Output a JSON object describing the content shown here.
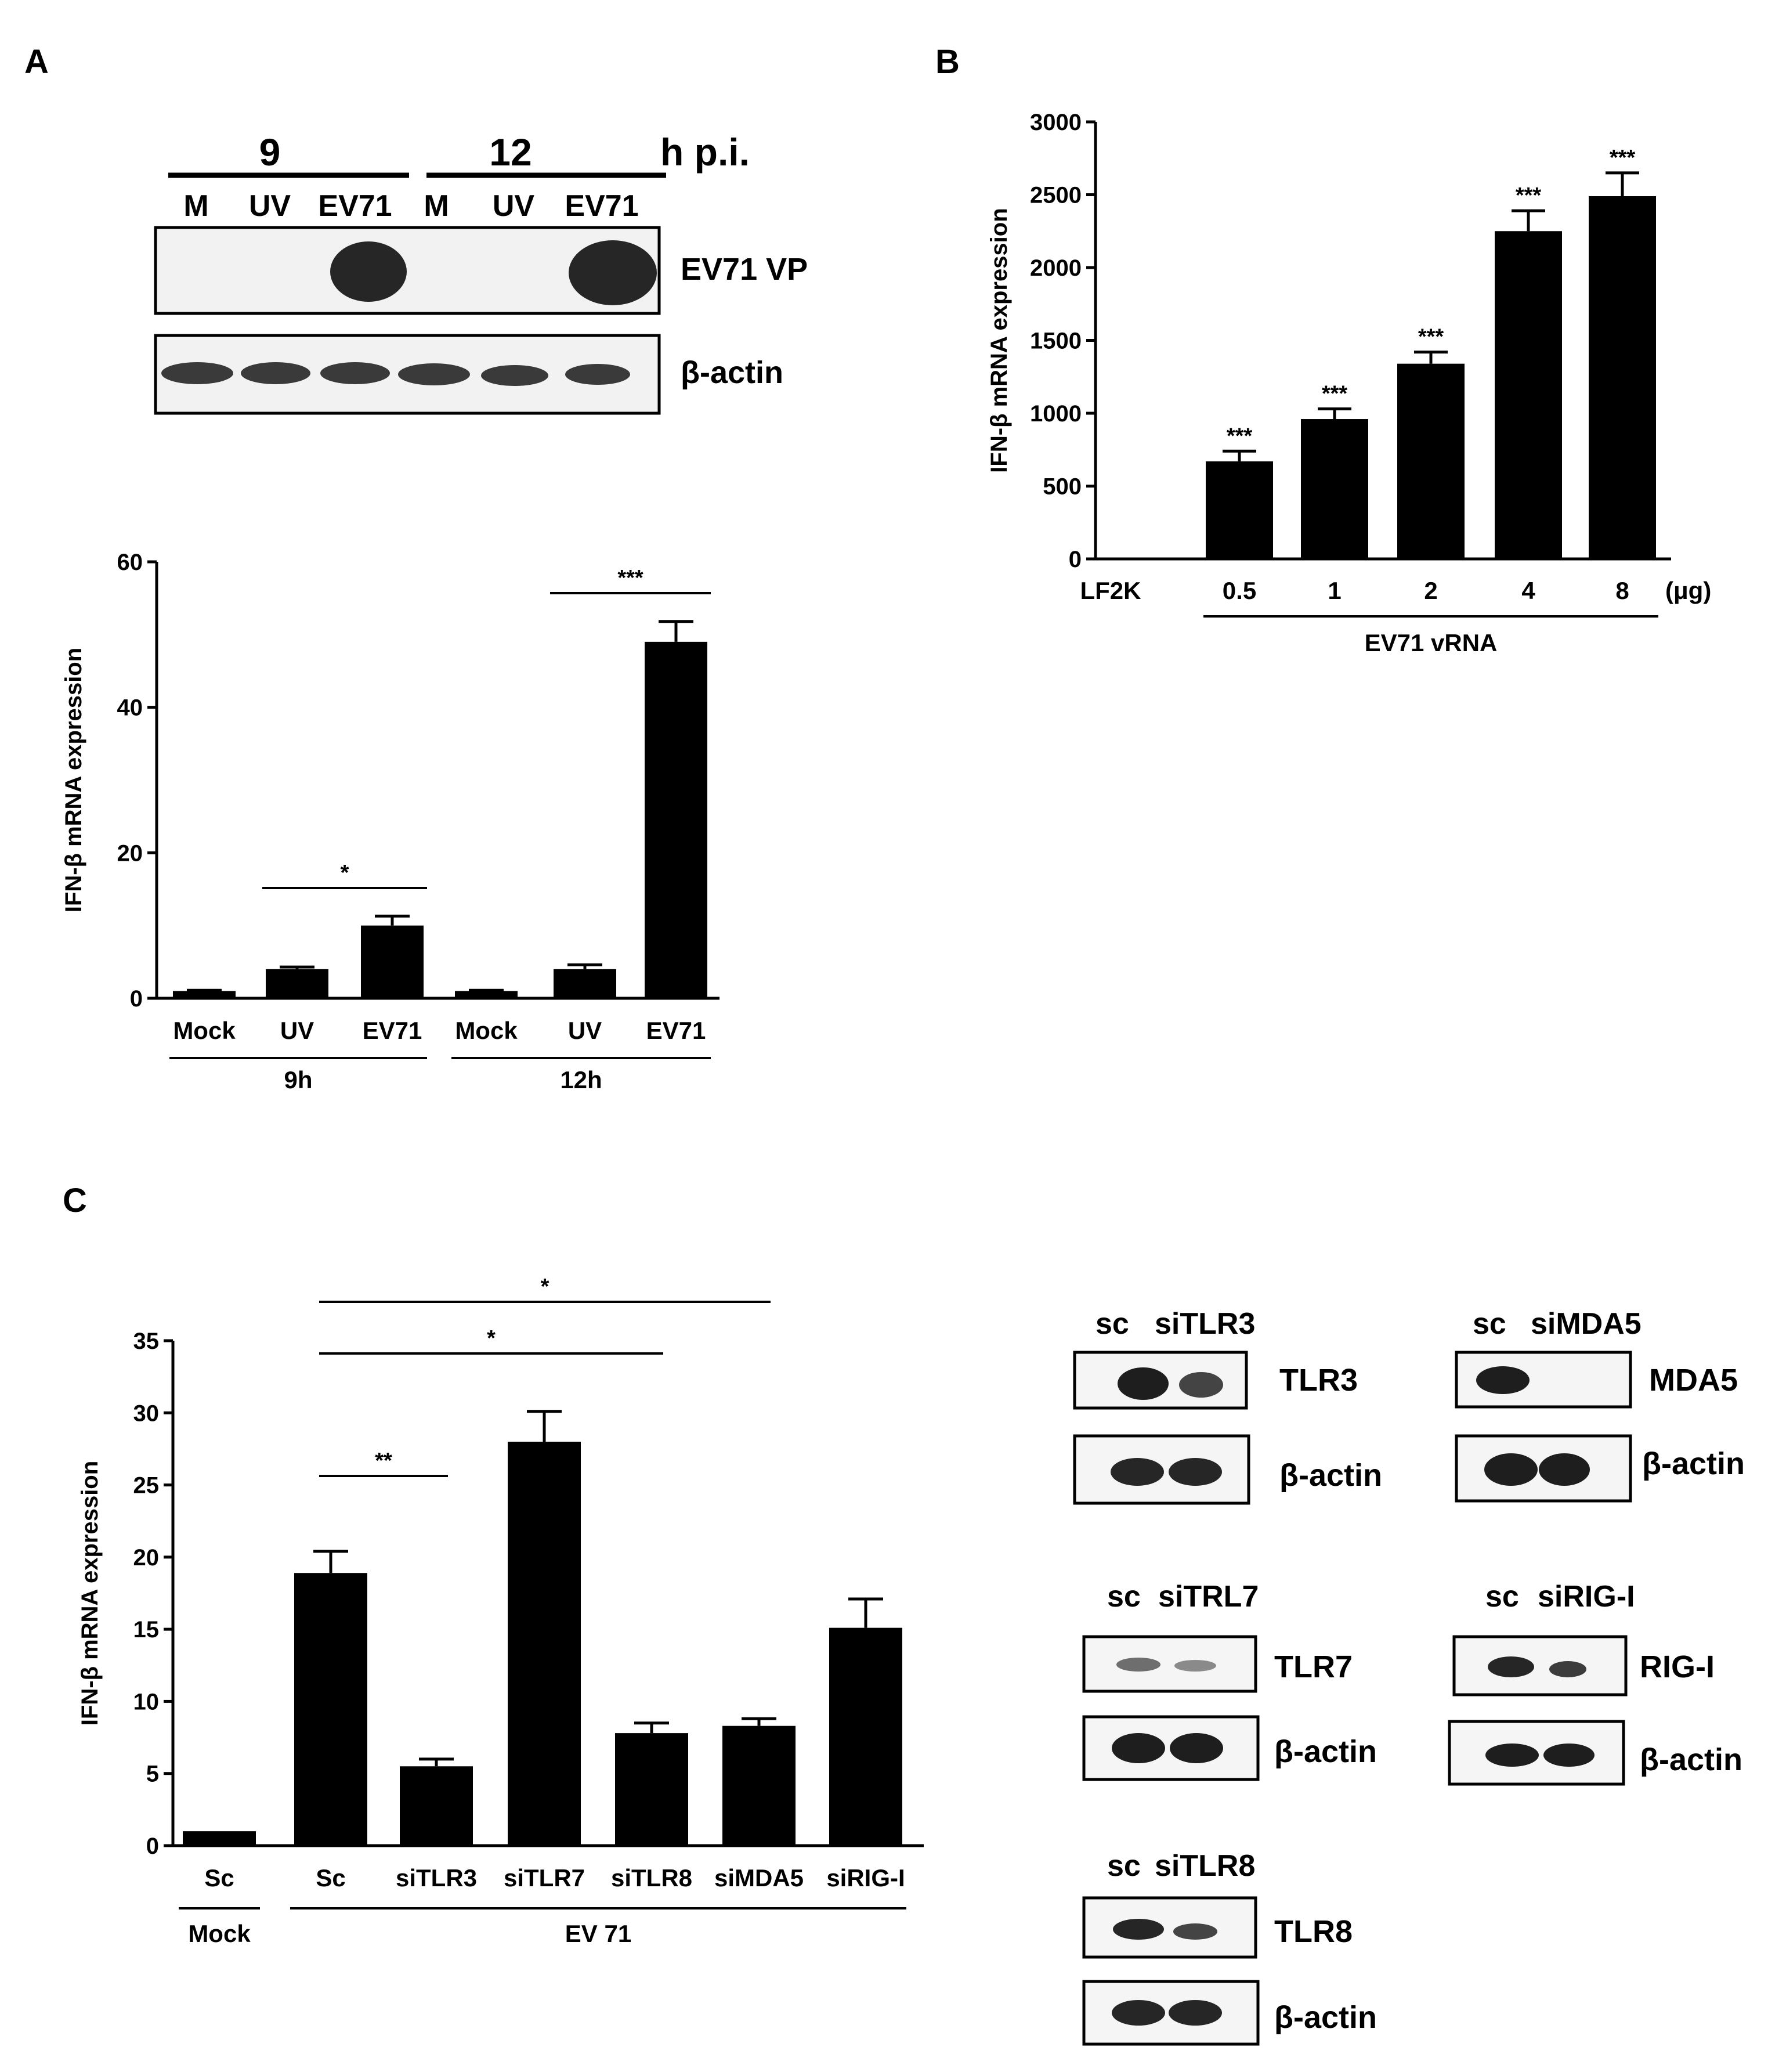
{
  "panels": {
    "A": {
      "letter": "A",
      "blot": {
        "timepoints": [
          "9",
          "12"
        ],
        "time_unit": "h p.i.",
        "lanes": [
          "M",
          "UV",
          "EV71",
          "M",
          "UV",
          "EV71"
        ],
        "rows": [
          {
            "label": "EV71 VP",
            "present": [
              false,
              false,
              true,
              false,
              false,
              true
            ]
          },
          {
            "label": "β-actin",
            "present": [
              true,
              true,
              true,
              true,
              true,
              true
            ]
          }
        ]
      }
    },
    "B": {
      "letter": "B"
    },
    "C": {
      "letter": "C",
      "blots": [
        {
          "lanes": [
            "sc",
            "siTLR3"
          ],
          "rows": [
            {
              "label": "TLR3"
            },
            {
              "label": "β-actin"
            }
          ]
        },
        {
          "lanes": [
            "sc",
            "siMDA5"
          ],
          "rows": [
            {
              "label": "MDA5"
            },
            {
              "label": "β-actin"
            }
          ]
        },
        {
          "lanes": [
            "sc",
            "siTRL7"
          ],
          "rows": [
            {
              "label": "TLR7"
            },
            {
              "label": "β-actin"
            }
          ]
        },
        {
          "lanes": [
            "sc",
            "siRIG-I"
          ],
          "rows": [
            {
              "label": "RIG-I"
            },
            {
              "label": "β-actin"
            }
          ]
        },
        {
          "lanes": [
            "sc",
            "siTLR8"
          ],
          "rows": [
            {
              "label": "TLR8"
            },
            {
              "label": "β-actin"
            }
          ]
        }
      ]
    }
  },
  "chart_data": [
    {
      "id": "A-bar",
      "type": "bar",
      "title": "",
      "xlabel": "",
      "ylabel": "IFN-β mRNA expression",
      "ylim": [
        0,
        60
      ],
      "yticks": [
        0,
        20,
        40,
        60
      ],
      "categories": [
        "Mock",
        "UV",
        "EV71",
        "Mock",
        "UV",
        "EV71"
      ],
      "values": [
        1,
        4,
        10,
        1,
        4,
        49
      ],
      "errors": [
        0.1,
        0.3,
        1.3,
        0.1,
        0.6,
        2.8
      ],
      "groups": [
        {
          "label": "9h",
          "range": [
            0,
            2
          ]
        },
        {
          "label": "12h",
          "range": [
            3,
            5
          ]
        }
      ],
      "significance": [
        {
          "from": 1,
          "to": 2,
          "label": "*"
        },
        {
          "from": 4,
          "to": 5,
          "label": "***"
        }
      ]
    },
    {
      "id": "B-bar",
      "type": "bar",
      "title": "",
      "xlabel": "EV71 vRNA",
      "ylabel": "IFN-β mRNA expression",
      "ylim": [
        0,
        3000
      ],
      "yticks": [
        0,
        500,
        1000,
        1500,
        2000,
        2500,
        3000
      ],
      "categories": [
        "LF2K",
        "0.5",
        "1",
        "2",
        "4",
        "8"
      ],
      "unit_label": "(μg)",
      "values": [
        0,
        670,
        960,
        1340,
        2250,
        2490
      ],
      "errors": [
        0,
        70,
        70,
        80,
        140,
        160
      ],
      "bar_labels": [
        "",
        "***",
        "***",
        "***",
        "***",
        "***"
      ],
      "groups": [
        {
          "label": "EV71 vRNA",
          "range": [
            1,
            5
          ]
        }
      ]
    },
    {
      "id": "C-bar",
      "type": "bar",
      "title": "",
      "xlabel": "",
      "ylabel": "IFN-β mRNA expression",
      "ylim": [
        0,
        35
      ],
      "yticks": [
        0,
        5,
        10,
        15,
        20,
        25,
        30,
        35
      ],
      "categories": [
        "Sc",
        "Sc",
        "siTLR3",
        "siTLR7",
        "siTLR8",
        "siMDA5",
        "siRIG-I"
      ],
      "values": [
        1,
        18.9,
        5.5,
        28,
        7.8,
        8.3,
        15.1
      ],
      "errors": [
        0,
        1.5,
        0.5,
        2.1,
        0.7,
        0.5,
        2.0
      ],
      "groups": [
        {
          "label": "Mock",
          "range": [
            0,
            0
          ]
        },
        {
          "label": "EV 71",
          "range": [
            1,
            6
          ]
        }
      ],
      "significance": [
        {
          "from": 1,
          "to": 2,
          "label": "**"
        },
        {
          "from": 1,
          "to": 4,
          "label": "*"
        },
        {
          "from": 1,
          "to": 5,
          "label": "*"
        }
      ]
    }
  ]
}
